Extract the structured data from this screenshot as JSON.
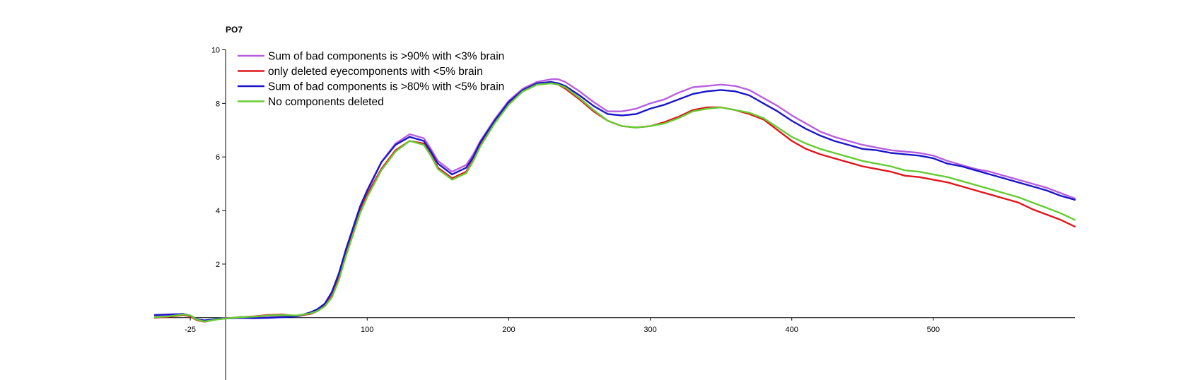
{
  "chart_data": {
    "type": "line",
    "title": "PO7",
    "xlabel": "",
    "ylabel": "",
    "xlim": [
      -50,
      600
    ],
    "ylim": [
      -2.3,
      10
    ],
    "x_ticks": [
      -25,
      100,
      200,
      300,
      400,
      500
    ],
    "y_ticks": [
      2,
      4,
      6,
      8,
      10
    ],
    "grid": false,
    "legend_position": "top-left",
    "x_tick_labels": [
      "-25",
      "100",
      "200",
      "300",
      "400",
      "500"
    ],
    "y_tick_labels": [
      "2",
      "4",
      "6",
      "8",
      "10"
    ],
    "series": [
      {
        "name": "Sum of bad components is >90% with <3% brain",
        "color": "#b85fe0",
        "x": [
          -50,
          -40,
          -30,
          -25,
          -20,
          -15,
          -10,
          -5,
          0,
          10,
          20,
          30,
          40,
          50,
          55,
          60,
          65,
          70,
          75,
          80,
          85,
          90,
          95,
          100,
          110,
          120,
          130,
          140,
          145,
          150,
          160,
          170,
          175,
          180,
          190,
          200,
          210,
          220,
          230,
          235,
          240,
          250,
          260,
          270,
          280,
          290,
          300,
          310,
          320,
          330,
          340,
          350,
          360,
          370,
          380,
          390,
          400,
          410,
          420,
          430,
          440,
          450,
          460,
          470,
          480,
          490,
          500,
          510,
          520,
          530,
          540,
          550,
          560,
          570,
          580,
          590,
          600
        ],
        "y": [
          0.08,
          0.1,
          0.13,
          0.06,
          -0.08,
          -0.12,
          -0.08,
          -0.04,
          -0.02,
          0.0,
          0.0,
          0.02,
          0.06,
          0.04,
          0.1,
          0.18,
          0.3,
          0.5,
          0.9,
          1.6,
          2.5,
          3.3,
          4.1,
          4.7,
          5.8,
          6.5,
          6.85,
          6.7,
          6.3,
          5.85,
          5.45,
          5.7,
          6.1,
          6.6,
          7.4,
          8.1,
          8.55,
          8.8,
          8.9,
          8.9,
          8.8,
          8.45,
          8.05,
          7.7,
          7.7,
          7.8,
          8.0,
          8.15,
          8.4,
          8.6,
          8.65,
          8.7,
          8.65,
          8.5,
          8.2,
          7.9,
          7.55,
          7.25,
          6.95,
          6.75,
          6.6,
          6.45,
          6.35,
          6.25,
          6.2,
          6.15,
          6.05,
          5.85,
          5.7,
          5.55,
          5.45,
          5.3,
          5.15,
          5.0,
          4.85,
          4.65,
          4.45
        ]
      },
      {
        "name": "only deleted eyecomponents with <5% brain",
        "color": "#e0161c",
        "x": [
          -50,
          -40,
          -30,
          -25,
          -20,
          -15,
          -10,
          -5,
          0,
          10,
          20,
          30,
          40,
          50,
          55,
          60,
          65,
          70,
          75,
          80,
          85,
          90,
          95,
          100,
          110,
          120,
          130,
          140,
          145,
          150,
          160,
          170,
          175,
          180,
          190,
          200,
          210,
          220,
          230,
          235,
          240,
          250,
          260,
          270,
          280,
          290,
          300,
          310,
          320,
          330,
          340,
          350,
          360,
          370,
          380,
          390,
          400,
          410,
          420,
          430,
          440,
          450,
          460,
          470,
          480,
          490,
          500,
          510,
          520,
          530,
          540,
          550,
          560,
          570,
          580,
          590,
          600
        ],
        "y": [
          0.0,
          0.03,
          0.1,
          0.05,
          -0.1,
          -0.15,
          -0.1,
          -0.05,
          -0.03,
          0.02,
          0.05,
          0.1,
          0.12,
          0.06,
          0.1,
          0.14,
          0.25,
          0.45,
          0.8,
          1.5,
          2.4,
          3.2,
          4.0,
          4.6,
          5.55,
          6.25,
          6.6,
          6.5,
          6.1,
          5.6,
          5.2,
          5.45,
          5.9,
          6.45,
          7.3,
          8.0,
          8.45,
          8.7,
          8.75,
          8.7,
          8.55,
          8.15,
          7.7,
          7.35,
          7.15,
          7.1,
          7.15,
          7.3,
          7.5,
          7.75,
          7.85,
          7.85,
          7.75,
          7.6,
          7.4,
          7.0,
          6.6,
          6.3,
          6.1,
          5.95,
          5.8,
          5.65,
          5.55,
          5.45,
          5.3,
          5.25,
          5.15,
          5.05,
          4.9,
          4.75,
          4.6,
          4.45,
          4.3,
          4.05,
          3.85,
          3.65,
          3.4
        ]
      },
      {
        "name": "Sum of bad components is >80% with <5% brain",
        "color": "#1a16c8",
        "x": [
          -50,
          -40,
          -30,
          -25,
          -20,
          -15,
          -10,
          -5,
          0,
          10,
          20,
          30,
          40,
          50,
          55,
          60,
          65,
          70,
          75,
          80,
          85,
          90,
          95,
          100,
          110,
          120,
          130,
          140,
          145,
          150,
          160,
          170,
          175,
          180,
          190,
          200,
          210,
          220,
          230,
          235,
          240,
          250,
          260,
          270,
          280,
          290,
          300,
          310,
          320,
          330,
          340,
          350,
          360,
          370,
          380,
          390,
          400,
          410,
          420,
          430,
          440,
          450,
          460,
          470,
          480,
          490,
          500,
          510,
          520,
          530,
          540,
          550,
          560,
          570,
          580,
          590,
          600
        ],
        "y": [
          0.1,
          0.12,
          0.14,
          0.08,
          -0.06,
          -0.1,
          -0.07,
          -0.04,
          -0.03,
          -0.01,
          -0.02,
          -0.01,
          0.02,
          0.05,
          0.12,
          0.2,
          0.32,
          0.52,
          0.95,
          1.65,
          2.55,
          3.35,
          4.15,
          4.75,
          5.8,
          6.45,
          6.75,
          6.6,
          6.2,
          5.75,
          5.35,
          5.6,
          6.0,
          6.55,
          7.35,
          8.05,
          8.5,
          8.75,
          8.8,
          8.75,
          8.65,
          8.3,
          7.9,
          7.6,
          7.55,
          7.6,
          7.8,
          7.95,
          8.15,
          8.35,
          8.45,
          8.5,
          8.45,
          8.3,
          8.0,
          7.7,
          7.35,
          7.05,
          6.8,
          6.6,
          6.45,
          6.3,
          6.25,
          6.15,
          6.1,
          6.05,
          5.95,
          5.75,
          5.65,
          5.5,
          5.35,
          5.2,
          5.05,
          4.9,
          4.75,
          4.55,
          4.4
        ]
      },
      {
        "name": "No components deleted",
        "color": "#66cc33",
        "x": [
          -50,
          -40,
          -30,
          -25,
          -20,
          -15,
          -10,
          -5,
          0,
          10,
          20,
          30,
          40,
          50,
          55,
          60,
          65,
          70,
          75,
          80,
          85,
          90,
          95,
          100,
          110,
          120,
          130,
          140,
          145,
          150,
          160,
          170,
          175,
          180,
          190,
          200,
          210,
          220,
          230,
          235,
          240,
          250,
          260,
          270,
          280,
          290,
          300,
          310,
          320,
          330,
          340,
          350,
          360,
          370,
          380,
          390,
          400,
          410,
          420,
          430,
          440,
          450,
          460,
          470,
          480,
          490,
          500,
          510,
          520,
          530,
          540,
          550,
          560,
          570,
          580,
          590,
          600
        ],
        "y": [
          0.02,
          0.05,
          0.12,
          0.08,
          -0.08,
          -0.14,
          -0.1,
          -0.06,
          -0.03,
          0.02,
          0.04,
          0.08,
          0.1,
          0.08,
          0.12,
          0.16,
          0.25,
          0.42,
          0.75,
          1.4,
          2.3,
          3.1,
          3.9,
          4.5,
          5.5,
          6.2,
          6.6,
          6.45,
          6.05,
          5.55,
          5.15,
          5.4,
          5.85,
          6.4,
          7.25,
          7.95,
          8.45,
          8.7,
          8.75,
          8.7,
          8.6,
          8.2,
          7.75,
          7.35,
          7.15,
          7.1,
          7.15,
          7.25,
          7.45,
          7.7,
          7.8,
          7.85,
          7.75,
          7.65,
          7.45,
          7.1,
          6.75,
          6.5,
          6.3,
          6.15,
          6.0,
          5.85,
          5.75,
          5.65,
          5.5,
          5.45,
          5.35,
          5.25,
          5.1,
          4.95,
          4.8,
          4.65,
          4.5,
          4.3,
          4.1,
          3.9,
          3.65
        ]
      }
    ]
  }
}
